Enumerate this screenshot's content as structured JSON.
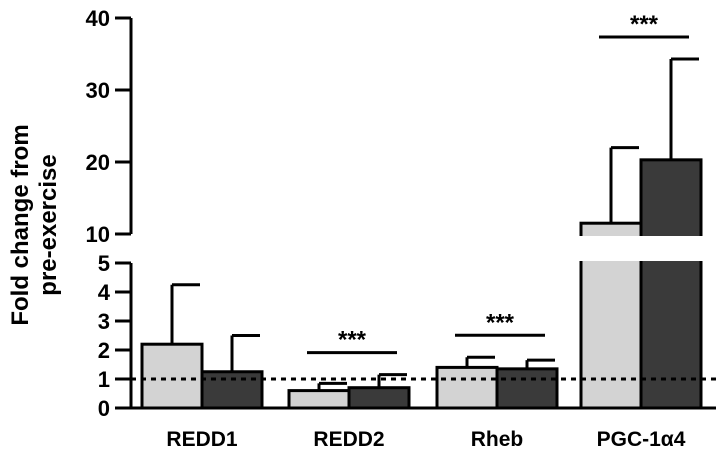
{
  "chart_data": {
    "type": "bar",
    "title": "",
    "xlabel": "",
    "ylabel": [
      "Fold change from",
      "pre-exercise"
    ],
    "categories": [
      "REDD1",
      "REDD2",
      "Rheb",
      "PGC-1α4"
    ],
    "y_axis_break": true,
    "ylim_lower": [
      0,
      5
    ],
    "ylim_upper": [
      10,
      40
    ],
    "yticks_lower": [
      "0",
      "1",
      "2",
      "3",
      "4",
      "5"
    ],
    "yticks_upper": [
      "10",
      "20",
      "30",
      "40"
    ],
    "reference_line": 1,
    "grid": false,
    "series": [
      {
        "color": "#d3d3d3",
        "values": [
          2.2,
          0.6,
          1.4,
          11.5
        ],
        "errors": [
          2.05,
          0.25,
          0.35,
          10.5
        ]
      },
      {
        "color": "#3a3a3a",
        "values": [
          1.25,
          0.7,
          1.35,
          20.3
        ],
        "errors": [
          1.25,
          0.45,
          0.3,
          14.0
        ]
      }
    ],
    "annotations": [
      {
        "category": "REDD2",
        "text": "***"
      },
      {
        "category": "Rheb",
        "text": "***"
      },
      {
        "category": "PGC-1α4",
        "text": "***"
      }
    ]
  }
}
